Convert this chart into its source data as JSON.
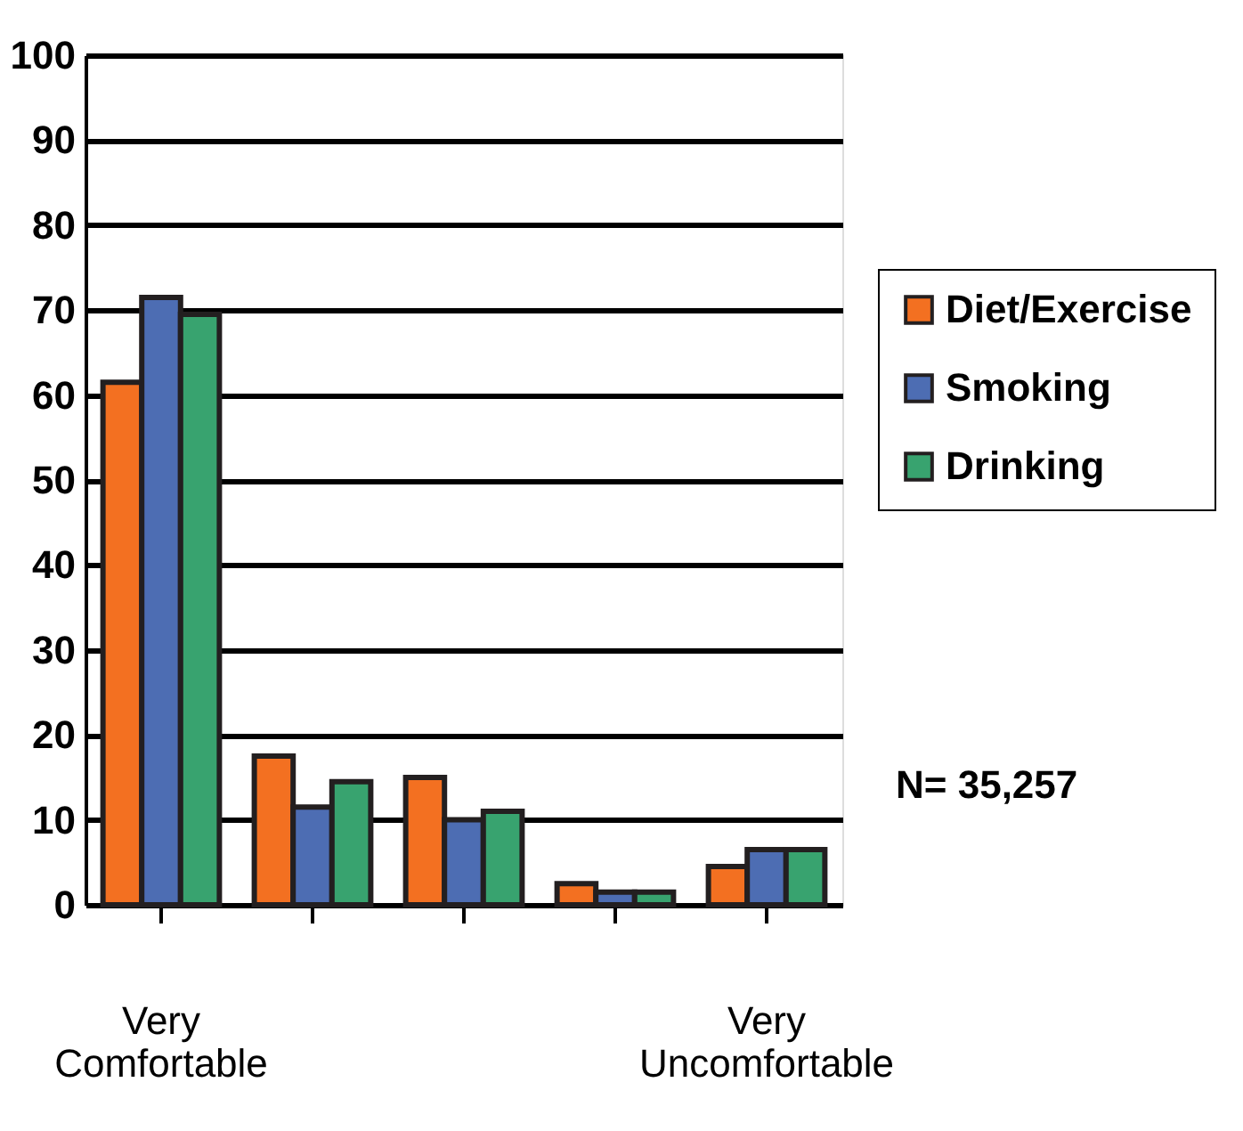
{
  "chart_data": {
    "type": "bar",
    "categories": [
      "Very Comfortable",
      null,
      null,
      null,
      "Very Uncomfortable"
    ],
    "series": [
      {
        "name": "Diet/Exercise",
        "color": "#f37021",
        "values": [
          61.5,
          17.5,
          15,
          2.5,
          4.5
        ]
      },
      {
        "name": "Smoking",
        "color": "#4d6db3",
        "values": [
          71.5,
          11.5,
          10,
          1.5,
          6.5
        ]
      },
      {
        "name": "Drinking",
        "color": "#38a36f",
        "values": [
          69.5,
          14.5,
          11,
          1.5,
          6.5
        ]
      }
    ],
    "ylim": [
      0,
      100
    ],
    "yticks": [
      0,
      10,
      20,
      30,
      40,
      50,
      60,
      70,
      80,
      90,
      100
    ],
    "grid": "y",
    "legend": "right",
    "annotations": [
      "N= 35,257"
    ]
  }
}
